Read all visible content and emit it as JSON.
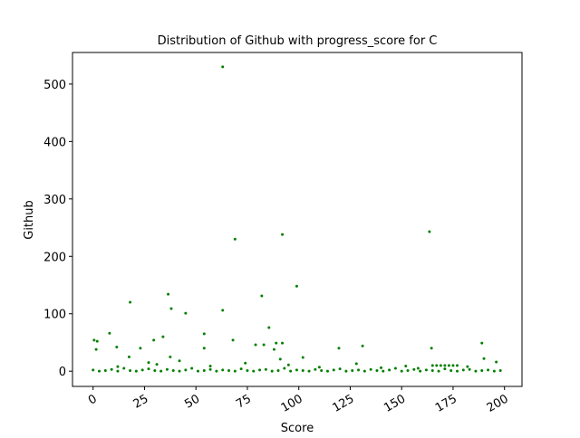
{
  "chart_data": {
    "type": "scatter",
    "title": "Distribution of Github with progress_score for C",
    "x_label": "Score",
    "y_label": "Github",
    "color": "#008000",
    "x": [
      63,
      69,
      92,
      163.5,
      99,
      82,
      36.5,
      18,
      38,
      63,
      45,
      85.5,
      8,
      54,
      34,
      0.5,
      2,
      68,
      92,
      89,
      189,
      29.5,
      79,
      83,
      131,
      11.5,
      23,
      1.5,
      54,
      164.5,
      119.5,
      88,
      37.5,
      17.5,
      102,
      91,
      190,
      196,
      165,
      167,
      169,
      171,
      173,
      175,
      177,
      12,
      27,
      31,
      42,
      57,
      74,
      95,
      110,
      128,
      140,
      152,
      158,
      182,
      0,
      3,
      6,
      9,
      12,
      15,
      18,
      21,
      24,
      27,
      30,
      33,
      36,
      39,
      42,
      45,
      48,
      51,
      54,
      57,
      60,
      63,
      66,
      69,
      72,
      75,
      78,
      81,
      84,
      87,
      90,
      93,
      96,
      99,
      102,
      105,
      108,
      111,
      114,
      117,
      120,
      123,
      126,
      129,
      132,
      135,
      138,
      141,
      144,
      147,
      150,
      153,
      156,
      159,
      162,
      165,
      168,
      171,
      174,
      177,
      180,
      183,
      186,
      189,
      192,
      195,
      198
    ],
    "y": [
      530,
      230,
      238,
      243,
      148,
      131,
      134,
      120,
      109,
      106,
      101,
      76,
      66,
      65,
      60,
      54,
      52,
      54,
      49,
      49,
      49,
      54,
      46,
      46,
      44,
      42,
      40,
      38,
      40,
      40,
      40,
      38,
      25,
      25,
      24,
      21,
      22,
      16,
      10,
      10,
      10,
      10,
      10,
      10,
      10,
      8,
      15,
      12,
      18,
      9,
      14,
      11,
      7,
      13,
      6,
      9,
      5,
      8,
      2,
      0,
      1,
      3,
      0,
      5,
      1,
      0,
      2,
      4,
      1,
      0,
      3,
      1,
      0,
      2,
      5,
      0,
      1,
      3,
      0,
      2,
      1,
      0,
      4,
      1,
      0,
      2,
      3,
      0,
      1,
      5,
      0,
      2,
      1,
      0,
      3,
      1,
      0,
      2,
      4,
      0,
      1,
      2,
      0,
      3,
      1,
      0,
      2,
      5,
      0,
      1,
      3,
      0,
      2,
      1,
      0,
      4,
      1,
      0,
      2,
      3,
      0,
      1,
      2,
      0,
      1
    ],
    "xlim": [
      -10,
      208.5
    ],
    "ylim": [
      -26.5,
      555
    ],
    "xticks": [
      0,
      25,
      50,
      75,
      100,
      125,
      150,
      175,
      200
    ],
    "yticks": [
      0,
      100,
      200,
      300,
      400,
      500
    ]
  }
}
